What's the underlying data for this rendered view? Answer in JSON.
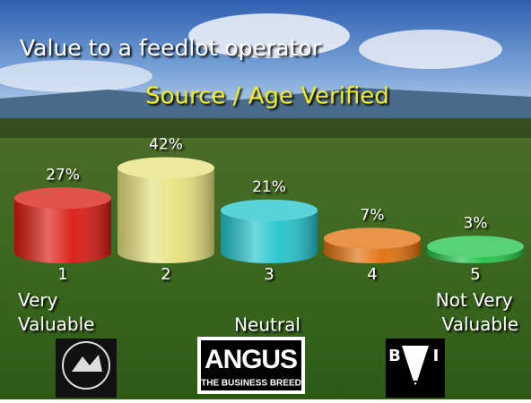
{
  "chart_data": {
    "type": "bar",
    "title": "Value to a feedlot operator",
    "subtitle": "Source / Age Verified",
    "categories": [
      "1",
      "2",
      "3",
      "4",
      "5"
    ],
    "values": [
      27,
      42,
      21,
      7,
      3
    ],
    "value_labels": [
      "27%",
      "42%",
      "21%",
      "7%",
      "3%"
    ],
    "colors": [
      "#d81a10",
      "#e6e27e",
      "#22c4cc",
      "#e0700c",
      "#22c248"
    ],
    "annotations": [
      "Very Valuable",
      "Neutral",
      "Not Very Valuable"
    ],
    "logos": {
      "angus": "ANGUS",
      "angus_tagline": "THE BUSINESS BREED",
      "bif": [
        "B",
        "I",
        "F"
      ]
    }
  }
}
